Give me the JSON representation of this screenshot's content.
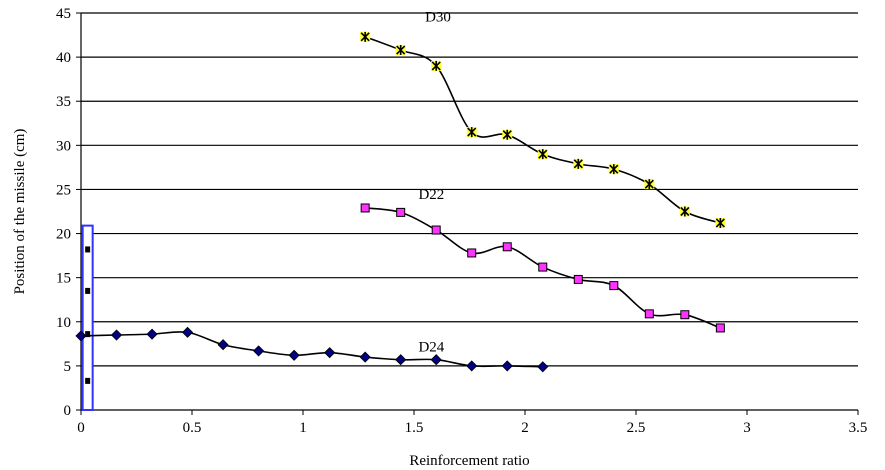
{
  "chart_data": {
    "type": "line",
    "xlabel": "Reinforcement ratio",
    "ylabel": "Position of the missile (cm)",
    "xlim": [
      0,
      3.5
    ],
    "ylim": [
      0,
      45
    ],
    "xticks": [
      "0",
      "0.5",
      "1",
      "1.5",
      "2",
      "2.5",
      "3",
      "3.5"
    ],
    "yticks": [
      "0",
      "5",
      "10",
      "15",
      "20",
      "25",
      "30",
      "35",
      "40",
      "45"
    ],
    "grid": "horizontal",
    "series": [
      {
        "name": "D30",
        "marker": "star",
        "marker_color": "#ffff33",
        "x": [
          1.28,
          1.44,
          1.6,
          1.76,
          1.92,
          2.08,
          2.24,
          2.4,
          2.56,
          2.72,
          2.88
        ],
        "y": [
          42.3,
          40.8,
          39.0,
          31.5,
          31.2,
          29.0,
          27.9,
          27.3,
          25.6,
          22.5,
          21.2
        ]
      },
      {
        "name": "D22",
        "marker": "square",
        "marker_color": "#ff33ff",
        "x": [
          1.28,
          1.44,
          1.6,
          1.76,
          1.92,
          2.08,
          2.24,
          2.4,
          2.56,
          2.72,
          2.88
        ],
        "y": [
          22.9,
          22.4,
          20.4,
          17.8,
          18.5,
          16.2,
          14.8,
          14.1,
          10.9,
          10.8,
          9.3
        ]
      },
      {
        "name": "D24",
        "marker": "diamond",
        "marker_color": "#000080",
        "x": [
          0,
          0.16,
          0.32,
          0.48,
          0.64,
          0.8,
          0.96,
          1.12,
          1.28,
          1.44,
          1.6,
          1.76,
          1.92,
          2.08
        ],
        "y": [
          8.4,
          8.5,
          8.6,
          8.8,
          7.4,
          6.7,
          6.2,
          6.5,
          6.0,
          5.7,
          5.7,
          5.0,
          5.0,
          4.9
        ]
      }
    ],
    "highlight": {
      "x": 0.03,
      "points": [
        3.3,
        8.6,
        13.5,
        18.2
      ],
      "ymax": 20.9,
      "color": "#3333ff"
    }
  }
}
